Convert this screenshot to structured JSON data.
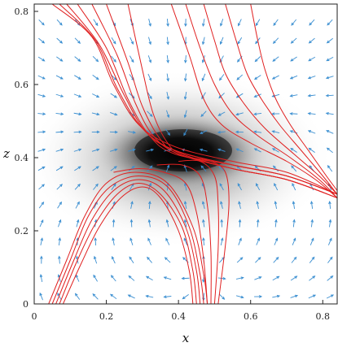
{
  "chart_data": {
    "type": "vector_field_with_streamlines",
    "title": "",
    "xlabel": "x",
    "ylabel": "z",
    "xlim": [
      0,
      0.84
    ],
    "ylim": [
      0,
      0.82
    ],
    "xticks": [
      "0",
      "0.2",
      "0.4",
      "0.6",
      "0.8"
    ],
    "yticks": [
      "0",
      "0.2",
      "0.4",
      "0.6",
      "0.8"
    ],
    "xtick_values": [
      0,
      0.2,
      0.4,
      0.6,
      0.8
    ],
    "ytick_values": [
      0,
      0.2,
      0.4,
      0.6,
      0.8
    ],
    "grid": false,
    "background_density": {
      "colormap": "greyscale",
      "peak": {
        "x": 0.4,
        "z": 0.4
      },
      "description_units": "data"
    },
    "quiver": {
      "color": "#3b8fd1",
      "grid_dx": 0.05,
      "grid_dz": 0.05,
      "source_center": {
        "x": 0.47,
        "z": 0.1
      },
      "sink_center": {
        "x": 0.4,
        "z": 0.42
      }
    },
    "streamlines": {
      "color": "#e02020",
      "bundles": [
        {
          "name": "upper-left bundle",
          "lines": [
            [
              [
                0.05,
                0.82
              ],
              [
                0.16,
                0.73
              ],
              [
                0.22,
                0.6
              ],
              [
                0.29,
                0.49
              ],
              [
                0.39,
                0.43
              ],
              [
                0.55,
                0.39
              ],
              [
                0.7,
                0.36
              ],
              [
                0.84,
                0.3
              ]
            ],
            [
              [
                0.07,
                0.82
              ],
              [
                0.17,
                0.72
              ],
              [
                0.23,
                0.59
              ],
              [
                0.3,
                0.48
              ],
              [
                0.39,
                0.42
              ],
              [
                0.55,
                0.38
              ],
              [
                0.7,
                0.35
              ],
              [
                0.84,
                0.3
              ]
            ],
            [
              [
                0.09,
                0.82
              ],
              [
                0.18,
                0.71
              ],
              [
                0.25,
                0.57
              ],
              [
                0.31,
                0.47
              ],
              [
                0.39,
                0.42
              ],
              [
                0.55,
                0.38
              ],
              [
                0.7,
                0.35
              ],
              [
                0.84,
                0.3
              ]
            ],
            [
              [
                0.12,
                0.82
              ],
              [
                0.2,
                0.7
              ],
              [
                0.26,
                0.56
              ],
              [
                0.32,
                0.46
              ],
              [
                0.39,
                0.41
              ],
              [
                0.55,
                0.38
              ],
              [
                0.7,
                0.35
              ],
              [
                0.84,
                0.3
              ]
            ],
            [
              [
                0.16,
                0.82
              ],
              [
                0.23,
                0.68
              ],
              [
                0.28,
                0.55
              ],
              [
                0.33,
                0.46
              ],
              [
                0.4,
                0.41
              ],
              [
                0.55,
                0.37
              ],
              [
                0.7,
                0.34
              ],
              [
                0.84,
                0.29
              ]
            ],
            [
              [
                0.2,
                0.82
              ],
              [
                0.26,
                0.66
              ],
              [
                0.3,
                0.54
              ],
              [
                0.35,
                0.45
              ],
              [
                0.4,
                0.41
              ],
              [
                0.55,
                0.37
              ],
              [
                0.7,
                0.34
              ],
              [
                0.84,
                0.29
              ]
            ],
            [
              [
                0.26,
                0.82
              ],
              [
                0.3,
                0.64
              ],
              [
                0.33,
                0.52
              ],
              [
                0.37,
                0.44
              ],
              [
                0.41,
                0.41
              ],
              [
                0.55,
                0.37
              ],
              [
                0.7,
                0.34
              ],
              [
                0.84,
                0.29
              ]
            ]
          ]
        },
        {
          "name": "upper-right bundle",
          "lines": [
            [
              [
                0.38,
                0.82
              ],
              [
                0.43,
                0.68
              ],
              [
                0.47,
                0.56
              ],
              [
                0.52,
                0.49
              ],
              [
                0.6,
                0.44
              ],
              [
                0.7,
                0.39
              ],
              [
                0.78,
                0.34
              ],
              [
                0.84,
                0.29
              ]
            ],
            [
              [
                0.42,
                0.82
              ],
              [
                0.46,
                0.7
              ],
              [
                0.5,
                0.6
              ],
              [
                0.55,
                0.52
              ],
              [
                0.62,
                0.46
              ],
              [
                0.71,
                0.4
              ],
              [
                0.79,
                0.34
              ],
              [
                0.84,
                0.29
              ]
            ],
            [
              [
                0.47,
                0.82
              ],
              [
                0.5,
                0.72
              ],
              [
                0.53,
                0.63
              ],
              [
                0.58,
                0.55
              ],
              [
                0.64,
                0.48
              ],
              [
                0.72,
                0.41
              ],
              [
                0.79,
                0.35
              ],
              [
                0.84,
                0.3
              ]
            ],
            [
              [
                0.53,
                0.82
              ],
              [
                0.56,
                0.72
              ],
              [
                0.59,
                0.63
              ],
              [
                0.63,
                0.56
              ],
              [
                0.68,
                0.49
              ],
              [
                0.74,
                0.42
              ],
              [
                0.8,
                0.35
              ],
              [
                0.84,
                0.3
              ]
            ],
            [
              [
                0.6,
                0.82
              ],
              [
                0.62,
                0.72
              ],
              [
                0.64,
                0.64
              ],
              [
                0.67,
                0.56
              ],
              [
                0.71,
                0.49
              ],
              [
                0.76,
                0.42
              ],
              [
                0.81,
                0.35
              ],
              [
                0.84,
                0.31
              ]
            ]
          ]
        },
        {
          "name": "lower arch bundle",
          "lines": [
            [
              [
                0.04,
                0.0
              ],
              [
                0.09,
                0.12
              ],
              [
                0.14,
                0.24
              ],
              [
                0.2,
                0.33
              ],
              [
                0.28,
                0.36
              ],
              [
                0.37,
                0.33
              ],
              [
                0.44,
                0.21
              ],
              [
                0.47,
                0.08
              ],
              [
                0.48,
                0.0
              ]
            ],
            [
              [
                0.05,
                0.0
              ],
              [
                0.1,
                0.12
              ],
              [
                0.15,
                0.24
              ],
              [
                0.21,
                0.32
              ],
              [
                0.29,
                0.35
              ],
              [
                0.37,
                0.32
              ],
              [
                0.43,
                0.21
              ],
              [
                0.46,
                0.08
              ],
              [
                0.47,
                0.0
              ]
            ],
            [
              [
                0.06,
                0.0
              ],
              [
                0.11,
                0.12
              ],
              [
                0.16,
                0.23
              ],
              [
                0.22,
                0.31
              ],
              [
                0.29,
                0.34
              ],
              [
                0.36,
                0.31
              ],
              [
                0.42,
                0.21
              ],
              [
                0.45,
                0.09
              ],
              [
                0.46,
                0.0
              ]
            ],
            [
              [
                0.07,
                0.0
              ],
              [
                0.12,
                0.12
              ],
              [
                0.17,
                0.22
              ],
              [
                0.23,
                0.3
              ],
              [
                0.29,
                0.33
              ],
              [
                0.35,
                0.3
              ],
              [
                0.41,
                0.21
              ],
              [
                0.44,
                0.09
              ],
              [
                0.45,
                0.0
              ]
            ],
            [
              [
                0.08,
                0.0
              ],
              [
                0.13,
                0.11
              ],
              [
                0.18,
                0.21
              ],
              [
                0.24,
                0.29
              ],
              [
                0.3,
                0.32
              ],
              [
                0.35,
                0.29
              ],
              [
                0.4,
                0.2
              ],
              [
                0.43,
                0.09
              ],
              [
                0.44,
                0.0
              ]
            ],
            [
              [
                0.48,
                0.0
              ],
              [
                0.47,
                0.12
              ],
              [
                0.45,
                0.25
              ],
              [
                0.42,
                0.33
              ],
              [
                0.36,
                0.36
              ],
              [
                0.29,
                0.37
              ],
              [
                0.22,
                0.36
              ]
            ],
            [
              [
                0.49,
                0.0
              ],
              [
                0.49,
                0.14
              ],
              [
                0.48,
                0.27
              ],
              [
                0.46,
                0.35
              ],
              [
                0.41,
                0.38
              ],
              [
                0.34,
                0.38
              ]
            ],
            [
              [
                0.5,
                0.0
              ],
              [
                0.51,
                0.15
              ],
              [
                0.51,
                0.27
              ],
              [
                0.5,
                0.35
              ],
              [
                0.46,
                0.39
              ],
              [
                0.4,
                0.39
              ]
            ],
            [
              [
                0.51,
                0.0
              ],
              [
                0.53,
                0.16
              ],
              [
                0.54,
                0.28
              ],
              [
                0.53,
                0.36
              ],
              [
                0.49,
                0.39
              ],
              [
                0.43,
                0.4
              ]
            ]
          ]
        }
      ]
    }
  }
}
